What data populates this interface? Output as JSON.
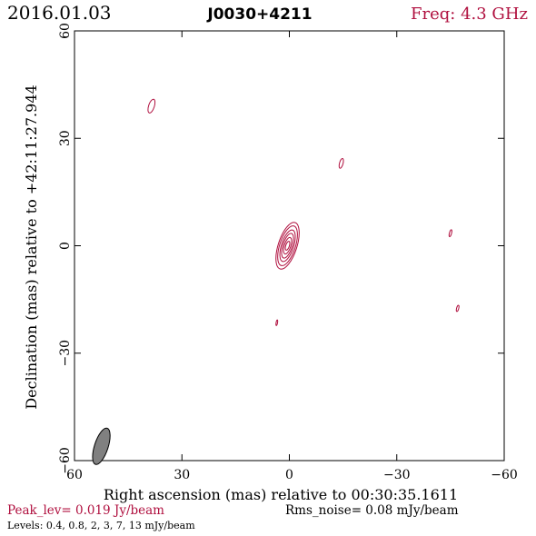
{
  "header": {
    "date": "2016.01.03",
    "source": "J0030+4211",
    "freq": "Freq: 4.3 GHz"
  },
  "footer": {
    "peak": "Peak_lev=  0.019 Jy/beam",
    "noise": "Rms_noise= 0.08 mJy/beam",
    "levels": "Levels: 0.4, 0.8,   2,   3,   7,  13 mJy/beam"
  },
  "colors": {
    "contour": "#b0103f",
    "peak_text": "#b0103f",
    "freq_text": "#b0103f",
    "beam_fill": "#808080",
    "axis": "#000000"
  },
  "chart_data": {
    "type": "contour",
    "xlabel": "Right ascension (mas) relative to 00:30:35.1611",
    "ylabel": "Declination (mas) relative to +42:11:27.944",
    "xlim": [
      60,
      -60
    ],
    "ylim": [
      -60,
      60
    ],
    "x_ticks": [
      60,
      30,
      0,
      -30,
      -60
    ],
    "y_ticks": [
      -60,
      -30,
      0,
      30,
      60
    ],
    "x_tick_labels": [
      "60",
      "30",
      "0",
      "−30",
      "−60"
    ],
    "y_tick_labels": [
      "−60",
      "−30",
      "0",
      "30",
      "60"
    ],
    "contour_levels_mJy": [
      0.4,
      0.8,
      2,
      3,
      7,
      13
    ],
    "peak_Jy_per_beam": 0.019,
    "rms_mJy_per_beam": 0.08,
    "core": {
      "x": 0.5,
      "y": 0.0,
      "pa_deg": -18,
      "contours": [
        {
          "a": 2.6,
          "b": 6.8
        },
        {
          "a": 2.2,
          "b": 5.8
        },
        {
          "a": 1.7,
          "b": 4.6
        },
        {
          "a": 1.3,
          "b": 3.6
        },
        {
          "a": 0.9,
          "b": 2.4
        },
        {
          "a": 0.5,
          "b": 1.3
        }
      ]
    },
    "components": [
      {
        "x": 38.5,
        "y": 39,
        "a": 0.8,
        "b": 2.0,
        "pa_deg": -18
      },
      {
        "x": -14.5,
        "y": 23,
        "a": 0.5,
        "b": 1.4,
        "pa_deg": -15
      },
      {
        "x": -45,
        "y": 3.5,
        "a": 0.3,
        "b": 1.0,
        "pa_deg": -15
      },
      {
        "x": -47,
        "y": -17.5,
        "a": 0.3,
        "b": 0.9,
        "pa_deg": -15
      },
      {
        "x": 3.5,
        "y": -21.5,
        "a": 0.2,
        "b": 0.8,
        "pa_deg": -10
      }
    ],
    "beam": {
      "x": 52.5,
      "y": -56,
      "a": 1.9,
      "b": 5.3,
      "pa_deg": -18
    }
  }
}
